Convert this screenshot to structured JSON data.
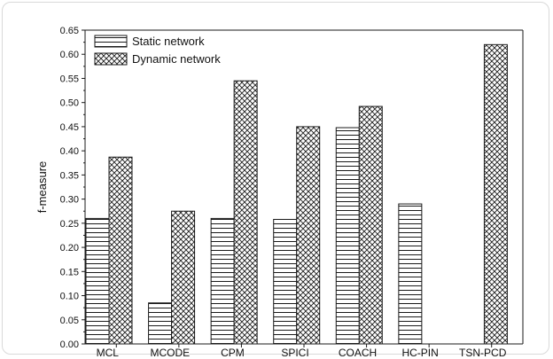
{
  "chart_data": {
    "type": "bar",
    "categories": [
      "MCL",
      "MCODE",
      "CPM",
      "SPICI",
      "COACH",
      "HC-PIN",
      "TSN-PCD"
    ],
    "series": [
      {
        "name": "Static network",
        "values": [
          0.26,
          0.085,
          0.26,
          0.258,
          0.448,
          0.29,
          null
        ],
        "pattern": "horizontal-lines"
      },
      {
        "name": "Dynamic network",
        "values": [
          0.387,
          0.275,
          0.545,
          0.45,
          0.492,
          null,
          0.62
        ],
        "pattern": "crosshatch"
      }
    ],
    "ylabel": "f-measure",
    "xlabel": "",
    "ylim": [
      0,
      0.65
    ],
    "yticks": [
      "0.00",
      "0.05",
      "0.10",
      "0.15",
      "0.20",
      "0.25",
      "0.30",
      "0.35",
      "0.40",
      "0.45",
      "0.50",
      "0.55",
      "0.60",
      "0.65"
    ],
    "legend": "top-left",
    "grid": false,
    "colors": {
      "bar_fill": "#ffffff",
      "bar_stroke": "#1a1a1a",
      "axis": "#1a1a1a"
    }
  }
}
